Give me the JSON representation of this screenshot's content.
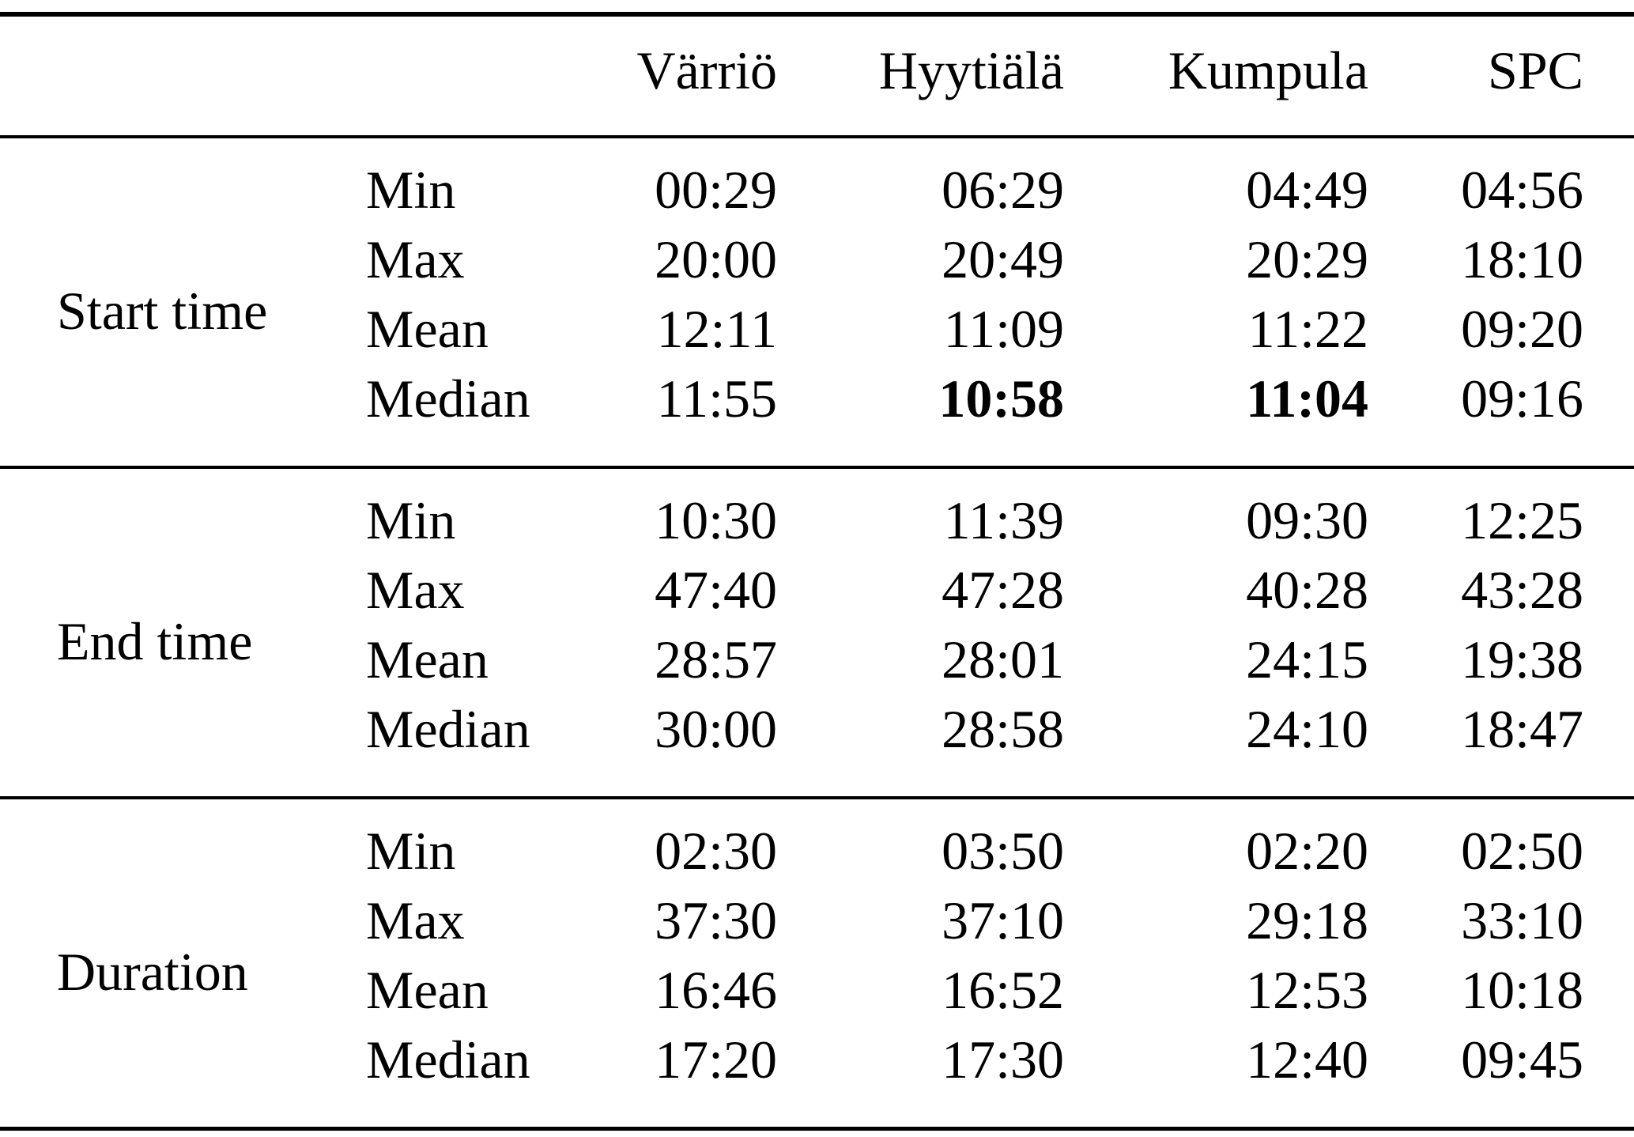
{
  "table": {
    "columns": [
      "Värriö",
      "Hyytiälä",
      "Kumpula",
      "SPC"
    ],
    "sections": [
      {
        "label": "Start time",
        "rows": [
          {
            "stat": "Min",
            "values": [
              "00:29",
              "06:29",
              "04:49",
              "04:56"
            ],
            "bold": []
          },
          {
            "stat": "Max",
            "values": [
              "20:00",
              "20:49",
              "20:29",
              "18:10"
            ],
            "bold": []
          },
          {
            "stat": "Mean",
            "values": [
              "12:11",
              "11:09",
              "11:22",
              "09:20"
            ],
            "bold": []
          },
          {
            "stat": "Median",
            "values": [
              "11:55",
              "10:58",
              "11:04",
              "09:16"
            ],
            "bold": [
              1,
              2
            ]
          }
        ]
      },
      {
        "label": "End time",
        "rows": [
          {
            "stat": "Min",
            "values": [
              "10:30",
              "11:39",
              "09:30",
              "12:25"
            ],
            "bold": []
          },
          {
            "stat": "Max",
            "values": [
              "47:40",
              "47:28",
              "40:28",
              "43:28"
            ],
            "bold": []
          },
          {
            "stat": "Mean",
            "values": [
              "28:57",
              "28:01",
              "24:15",
              "19:38"
            ],
            "bold": []
          },
          {
            "stat": "Median",
            "values": [
              "30:00",
              "28:58",
              "24:10",
              "18:47"
            ],
            "bold": []
          }
        ]
      },
      {
        "label": "Duration",
        "rows": [
          {
            "stat": "Min",
            "values": [
              "02:30",
              "03:50",
              "02:20",
              "02:50"
            ],
            "bold": []
          },
          {
            "stat": "Max",
            "values": [
              "37:30",
              "37:10",
              "29:18",
              "33:10"
            ],
            "bold": []
          },
          {
            "stat": "Mean",
            "values": [
              "16:46",
              "16:52",
              "12:53",
              "10:18"
            ],
            "bold": []
          },
          {
            "stat": "Median",
            "values": [
              "17:20",
              "17:30",
              "12:40",
              "09:45"
            ],
            "bold": []
          }
        ]
      }
    ],
    "text_color": "#000000",
    "background_color": "#ffffff"
  }
}
